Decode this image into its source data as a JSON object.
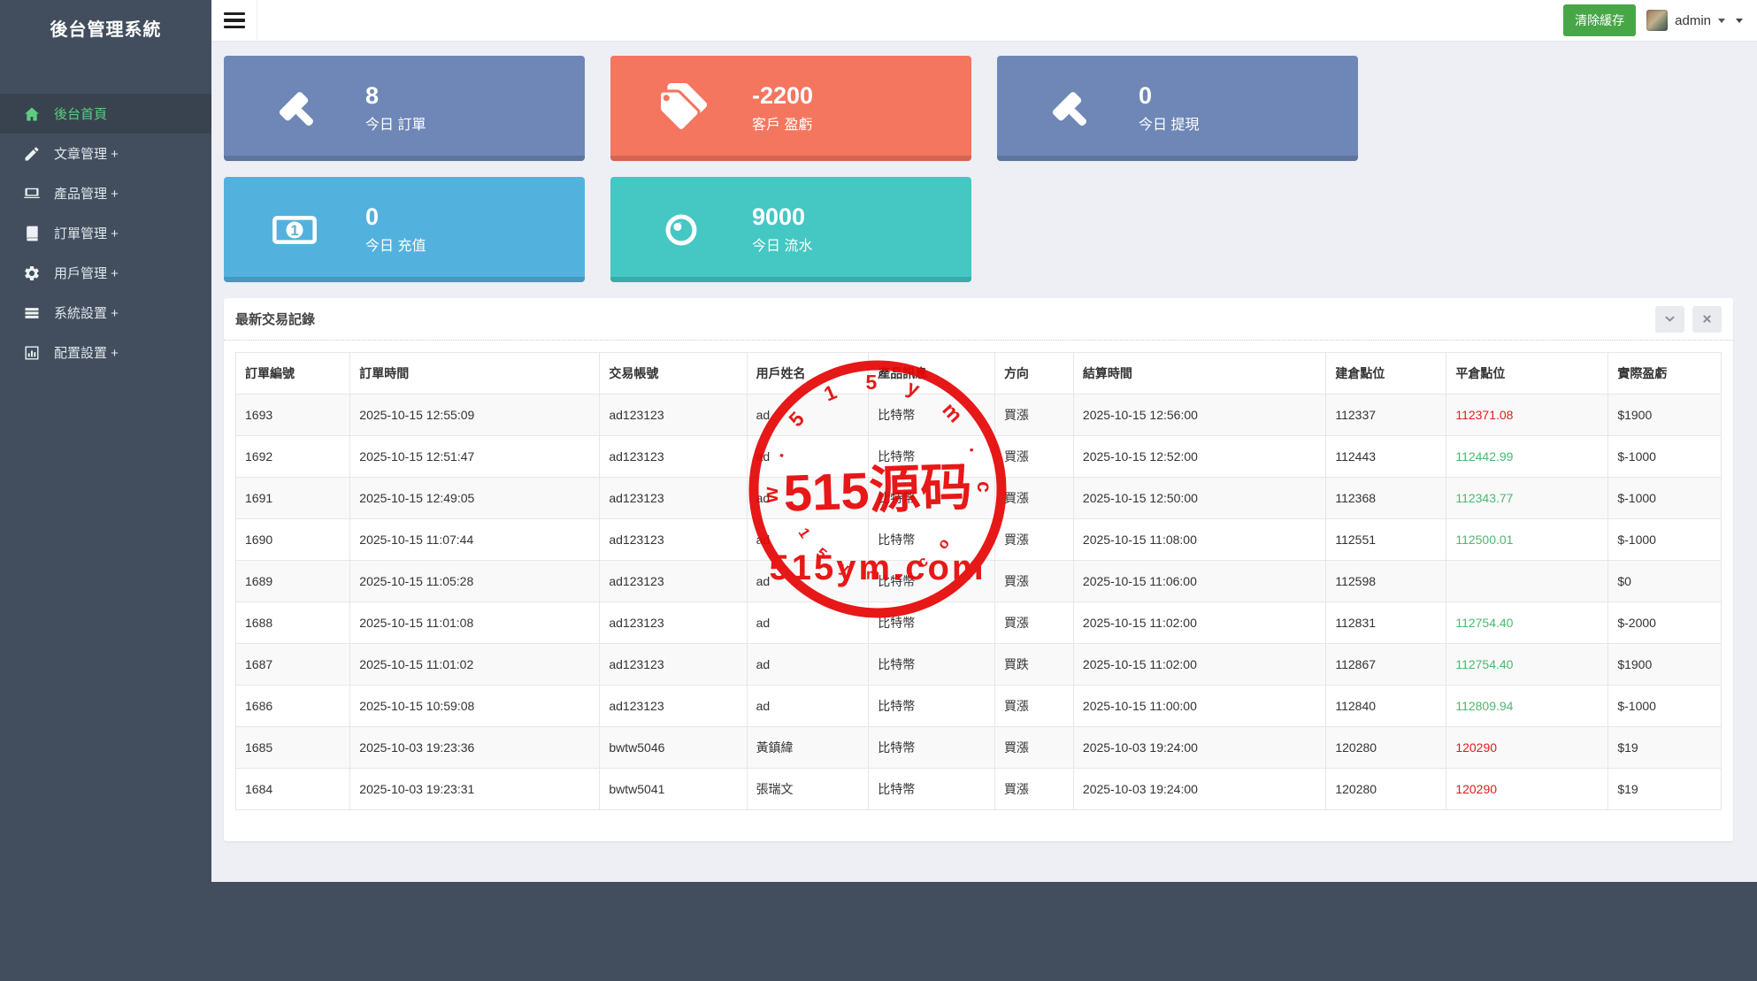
{
  "app_title": "後台管理系統",
  "topbar": {
    "clear_cache": "清除緩存",
    "username": "admin"
  },
  "sidebar": {
    "items": [
      {
        "name": "home",
        "icon": "home-icon",
        "label": "後台首頁",
        "active": true
      },
      {
        "name": "articles",
        "icon": "pencil-icon",
        "label": "文章管理 +",
        "active": false
      },
      {
        "name": "products",
        "icon": "laptop-icon",
        "label": "產品管理 +",
        "active": false
      },
      {
        "name": "orders",
        "icon": "book-icon",
        "label": "訂單管理 +",
        "active": false
      },
      {
        "name": "users",
        "icon": "cogs-icon",
        "label": "用戶管理 +",
        "active": false
      },
      {
        "name": "system",
        "icon": "tasks-icon",
        "label": "系統設置 +",
        "active": false
      },
      {
        "name": "config",
        "icon": "bar-chart-icon",
        "label": "配置設置 +",
        "active": false
      }
    ]
  },
  "cards": [
    {
      "name": "today-orders",
      "icon": "gavel-icon",
      "value": "8",
      "label": "今日 訂單",
      "color": "#6e87b7"
    },
    {
      "name": "customer-pnl",
      "icon": "tags-icon",
      "value": "-2200",
      "label": "客戶 盈虧",
      "color": "#f4765f"
    },
    {
      "name": "today-withdraw",
      "icon": "gavel-icon",
      "value": "0",
      "label": "今日 提現",
      "color": "#6e87b7"
    },
    {
      "name": "today-recharge",
      "icon": "banknote-icon",
      "value": "0",
      "label": "今日 充值",
      "color": "#53b2dd"
    },
    {
      "name": "today-volume",
      "icon": "eye-icon",
      "value": "9000",
      "label": "今日 流水",
      "color": "#45c7c3"
    }
  ],
  "panel": {
    "title": "最新交易記錄"
  },
  "table": {
    "headers": [
      "訂單編號",
      "訂單時間",
      "交易帳號",
      "用戶姓名",
      "產品訊息",
      "方向",
      "結算時間",
      "建倉點位",
      "平倉點位",
      "實際盈虧"
    ],
    "rows": [
      {
        "id": "1693",
        "time": "2025-10-15 12:55:09",
        "account": "ad123123",
        "user": "ad",
        "product": "比特幣",
        "direction": "買漲",
        "settle_time": "2025-10-15 12:56:00",
        "open": "112337",
        "close": "112371.08",
        "close_color": "red",
        "profit": "$1900"
      },
      {
        "id": "1692",
        "time": "2025-10-15 12:51:47",
        "account": "ad123123",
        "user": "ad",
        "product": "比特幣",
        "direction": "買漲",
        "settle_time": "2025-10-15 12:52:00",
        "open": "112443",
        "close": "112442.99",
        "close_color": "green",
        "profit": "$-1000"
      },
      {
        "id": "1691",
        "time": "2025-10-15 12:49:05",
        "account": "ad123123",
        "user": "ad",
        "product": "比特幣",
        "direction": "買漲",
        "settle_time": "2025-10-15 12:50:00",
        "open": "112368",
        "close": "112343.77",
        "close_color": "green",
        "profit": "$-1000"
      },
      {
        "id": "1690",
        "time": "2025-10-15 11:07:44",
        "account": "ad123123",
        "user": "ad",
        "product": "比特幣",
        "direction": "買漲",
        "settle_time": "2025-10-15 11:08:00",
        "open": "112551",
        "close": "112500.01",
        "close_color": "green",
        "profit": "$-1000"
      },
      {
        "id": "1689",
        "time": "2025-10-15 11:05:28",
        "account": "ad123123",
        "user": "ad",
        "product": "比特幣",
        "direction": "買漲",
        "settle_time": "2025-10-15 11:06:00",
        "open": "112598",
        "close": "",
        "close_color": "",
        "profit": "$0"
      },
      {
        "id": "1688",
        "time": "2025-10-15 11:01:08",
        "account": "ad123123",
        "user": "ad",
        "product": "比特幣",
        "direction": "買漲",
        "settle_time": "2025-10-15 11:02:00",
        "open": "112831",
        "close": "112754.40",
        "close_color": "green",
        "profit": "$-2000"
      },
      {
        "id": "1687",
        "time": "2025-10-15 11:01:02",
        "account": "ad123123",
        "user": "ad",
        "product": "比特幣",
        "direction": "買跌",
        "settle_time": "2025-10-15 11:02:00",
        "open": "112867",
        "close": "112754.40",
        "close_color": "green",
        "profit": "$1900"
      },
      {
        "id": "1686",
        "time": "2025-10-15 10:59:08",
        "account": "ad123123",
        "user": "ad",
        "product": "比特幣",
        "direction": "買漲",
        "settle_time": "2025-10-15 11:00:00",
        "open": "112840",
        "close": "112809.94",
        "close_color": "green",
        "profit": "$-1000"
      },
      {
        "id": "1685",
        "time": "2025-10-03 19:23:36",
        "account": "bwtw5046",
        "user": "黃鎮緯",
        "product": "比特幣",
        "direction": "買漲",
        "settle_time": "2025-10-03 19:24:00",
        "open": "120280",
        "close": "120290",
        "close_color": "red",
        "profit": "$19"
      },
      {
        "id": "1684",
        "time": "2025-10-03 19:23:31",
        "account": "bwtw5041",
        "user": "張瑞文",
        "product": "比特幣",
        "direction": "買漲",
        "settle_time": "2025-10-03 19:24:00",
        "open": "120280",
        "close": "120290",
        "close_color": "red",
        "profit": "$19"
      }
    ]
  },
  "watermark": {
    "arc_top": "www.515ym.com",
    "center": "515源码",
    "line": "515ym.com",
    "arc_bottom": "515ym.com",
    "color": "#e60505"
  },
  "colors": {
    "sidebar_bg": "#424e5e",
    "sidebar_active_bg": "#39434f",
    "sidebar_active_text": "#5ecb81",
    "content_bg": "#edeff4",
    "button_green": "#47a747",
    "value_red": "#e31b1b",
    "value_green": "#4cb86e",
    "stamp_red": "#e60505"
  }
}
